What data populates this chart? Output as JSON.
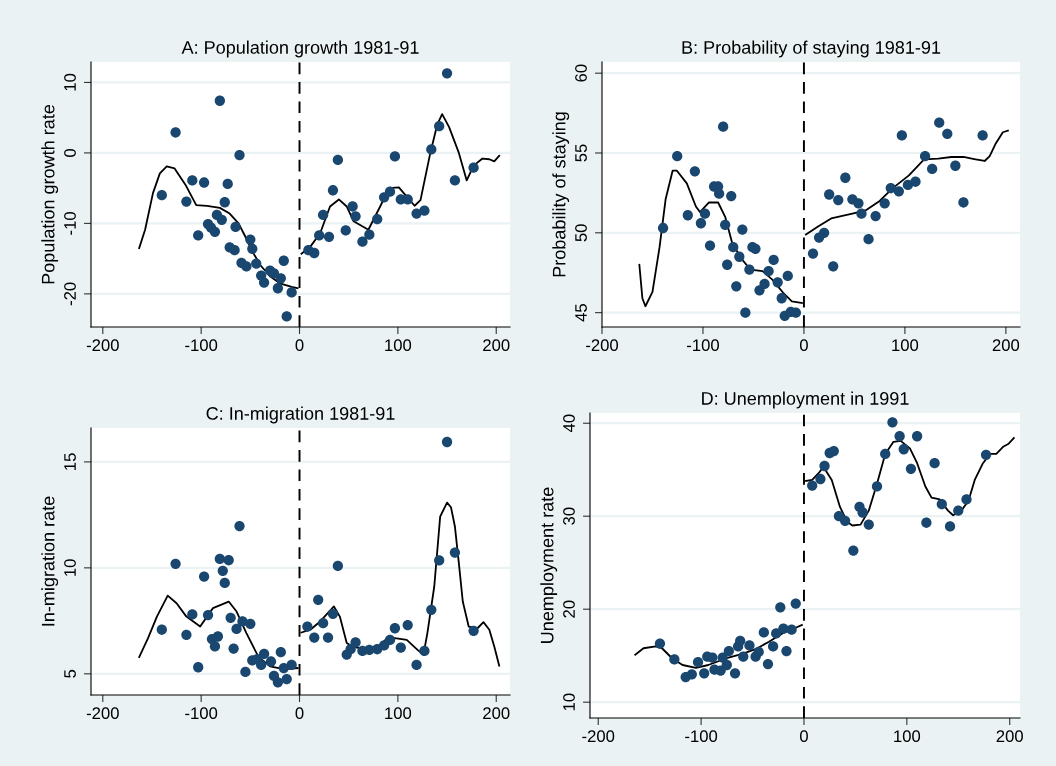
{
  "chart_data": [
    {
      "type": "scatter",
      "title": "A: Population growth 1981-91",
      "ylabel": "Population growth rate",
      "xlim": [
        -212,
        214
      ],
      "ylim": [
        -24.7,
        12.9
      ],
      "xticks": [
        -200,
        -100,
        0,
        100,
        200
      ],
      "yticks": [
        -20,
        -10,
        0,
        10
      ],
      "grid": "y",
      "marker": "circle",
      "ref_lines": [
        {
          "axis": "x",
          "value": 0,
          "color": "#000000",
          "line_style": "dashed"
        }
      ],
      "series": [
        {
          "color": "#1a476f",
          "x": [
            -140,
            -126,
            -81,
            -61,
            -109,
            -97,
            -115,
            -73,
            -76,
            -84,
            -79,
            -93,
            -90,
            -86,
            -103,
            -65,
            -50,
            -48,
            -71,
            -66,
            -59,
            -54,
            -44,
            -39,
            -36,
            -30,
            -26,
            -19,
            -16,
            -22,
            -8,
            -13,
            9,
            15,
            20,
            30,
            24,
            34,
            39,
            47,
            54,
            57,
            64,
            71,
            79,
            86,
            92,
            97,
            103,
            110,
            119,
            127,
            134,
            142,
            150,
            158,
            177
          ],
          "values": [
            -6.0,
            2.9,
            7.4,
            -0.3,
            -3.9,
            -4.2,
            -6.9,
            -4.4,
            -7.0,
            -8.8,
            -9.5,
            -10.1,
            -10.6,
            -11.2,
            -11.7,
            -10.5,
            -12.3,
            -13.6,
            -13.4,
            -13.8,
            -15.6,
            -16.1,
            -15.7,
            -17.4,
            -18.4,
            -16.7,
            -17.1,
            -17.8,
            -15.3,
            -19.2,
            -19.8,
            -23.2,
            -13.8,
            -14.2,
            -11.7,
            -11.9,
            -8.8,
            -5.3,
            -1.0,
            -11.0,
            -7.6,
            -9.0,
            -12.6,
            -11.6,
            -9.4,
            -6.3,
            -5.5,
            -0.5,
            -6.6,
            -6.6,
            -8.6,
            -8.2,
            0.5,
            3.8,
            11.3,
            -3.9,
            -2.1
          ]
        },
        {
          "type": "line",
          "marker": "none",
          "color": "#000000",
          "x": [
            -163,
            -157,
            -149,
            -142,
            -135,
            -127,
            -116,
            -105,
            -94,
            -81,
            -71,
            -62,
            -55,
            -47,
            -40,
            -30,
            -20,
            -8,
            -2
          ],
          "values": [
            -13.5,
            -10.9,
            -5.7,
            -2.9,
            -1.9,
            -2.2,
            -4.5,
            -7.4,
            -7.5,
            -7.8,
            -8.6,
            -10.0,
            -11.9,
            -14.2,
            -15.9,
            -17.5,
            -18.5,
            -19.0,
            -19.2
          ]
        },
        {
          "type": "line",
          "marker": "none",
          "color": "#000000",
          "x": [
            2,
            11,
            21,
            31,
            40,
            48,
            55,
            70,
            82,
            91,
            101,
            109,
            117,
            123,
            133,
            140,
            145,
            152,
            162,
            170,
            177,
            186,
            193,
            198,
            203
          ],
          "values": [
            -14.3,
            -13.3,
            -11.4,
            -7.6,
            -6.6,
            -7.6,
            -9.7,
            -10.9,
            -7.6,
            -5.0,
            -4.9,
            -6.2,
            -7.5,
            -6.7,
            0,
            4.0,
            5.5,
            3.7,
            0,
            -3.9,
            -1.8,
            -0.8,
            -0.9,
            -1.2,
            -0.4
          ]
        }
      ]
    },
    {
      "type": "scatter",
      "title": "B: Probability of staying 1981-91",
      "ylabel": "Probability of staying",
      "xlim": [
        -200,
        214
      ],
      "ylim": [
        44.1,
        60.7
      ],
      "xticks": [
        -200,
        -100,
        0,
        100,
        200
      ],
      "yticks": [
        45,
        50,
        55,
        60
      ],
      "grid": "y",
      "marker": "circle",
      "ref_lines": [
        {
          "axis": "x",
          "value": 0,
          "color": "#000000",
          "line_style": "dashed"
        }
      ],
      "series": [
        {
          "color": "#1a476f",
          "x": [
            -139.5,
            -125.5,
            -108,
            -115,
            -102,
            -98,
            -93,
            -89,
            -85,
            -84,
            -80,
            -78,
            -72,
            -70,
            -76,
            -67,
            -64,
            -61,
            -58,
            -54,
            -51,
            -48,
            -44,
            -39,
            -35,
            -30,
            -26,
            -22,
            -16,
            -19,
            -13,
            -8,
            9,
            15,
            20,
            25,
            29,
            34,
            41,
            48,
            54,
            57,
            64,
            71,
            80,
            86,
            94,
            97,
            103,
            110.5,
            120,
            127,
            134,
            142,
            150,
            158,
            177
          ],
          "values": [
            50.3,
            54.8,
            53.85,
            51.1,
            50.6,
            51.2,
            49.2,
            52.9,
            52.9,
            52.45,
            56.65,
            50.5,
            52.3,
            49.1,
            48.0,
            46.65,
            48.5,
            50.2,
            45.0,
            47.7,
            49.1,
            49.0,
            46.4,
            46.8,
            47.6,
            48.3,
            46.9,
            45.9,
            47.3,
            44.8,
            45.05,
            45.0,
            48.7,
            49.7,
            50.0,
            52.4,
            47.9,
            52.05,
            53.45,
            52.1,
            51.85,
            51.2,
            49.6,
            51.05,
            51.85,
            52.8,
            52.6,
            56.1,
            53.0,
            53.2,
            54.8,
            54.0,
            56.9,
            56.2,
            54.2,
            51.9,
            56.1
          ]
        },
        {
          "type": "line",
          "marker": "none",
          "color": "#000000",
          "x": [
            -163,
            -160,
            -157,
            -150,
            -143,
            -137,
            -130,
            -126,
            -116,
            -107,
            -103,
            -94,
            -85,
            -78,
            -71,
            -61,
            -53,
            -41,
            -31,
            -20,
            -12,
            -2
          ],
          "values": [
            48.0,
            45.9,
            45.4,
            46.3,
            49.1,
            52.1,
            53.9,
            53.9,
            53.1,
            51.65,
            51.3,
            51.9,
            51.9,
            51.0,
            49.35,
            48.3,
            47.7,
            47.6,
            47.05,
            46.2,
            45.7,
            45.6
          ]
        },
        {
          "type": "line",
          "marker": "none",
          "color": "#000000",
          "x": [
            2,
            14,
            27,
            48,
            61,
            75,
            88,
            104,
            119,
            133,
            146,
            158,
            170,
            179,
            184,
            190,
            197,
            202
          ],
          "values": [
            49.9,
            50.4,
            50.9,
            51.2,
            51.4,
            52.0,
            52.8,
            53.6,
            54.6,
            54.65,
            54.75,
            54.75,
            54.6,
            54.5,
            54.8,
            55.6,
            56.3,
            56.4
          ]
        }
      ]
    },
    {
      "type": "scatter",
      "title": "C: In-migration 1981-91",
      "ylabel": "In-migration rate",
      "xlim": [
        -212,
        214
      ],
      "ylim": [
        4.0,
        16.6
      ],
      "xticks": [
        -200,
        -100,
        0,
        100,
        200
      ],
      "yticks": [
        5,
        10,
        15
      ],
      "grid": "y",
      "marker": "circle",
      "ref_lines": [
        {
          "axis": "x",
          "value": 0,
          "color": "#000000",
          "line_style": "dashed"
        }
      ],
      "series": [
        {
          "color": "#1a476f",
          "x": [
            -140,
            -126,
            -115,
            -109,
            -103,
            -97,
            -93,
            -89,
            -86,
            -83,
            -81,
            -72,
            -78,
            -76,
            -70,
            -64,
            -61,
            -67,
            -58,
            -50,
            -55,
            -48,
            -43,
            -36,
            -39,
            -29,
            -26,
            -22,
            -19,
            -13,
            -8,
            -16,
            8,
            15,
            19,
            24,
            29,
            34,
            39,
            48,
            57,
            52,
            64,
            71,
            79,
            86,
            92,
            97,
            103,
            110,
            119,
            127,
            134,
            142,
            150,
            158,
            177
          ],
          "values": [
            7.08,
            10.19,
            6.84,
            7.8,
            5.31,
            9.59,
            7.77,
            6.64,
            6.29,
            6.76,
            10.42,
            10.36,
            9.86,
            9.29,
            7.64,
            7.12,
            11.97,
            6.19,
            7.47,
            7.36,
            5.09,
            5.63,
            5.69,
            5.94,
            5.42,
            5.58,
            4.9,
            4.6,
            6.02,
            4.75,
            5.42,
            5.27,
            7.23,
            6.71,
            8.49,
            7.39,
            6.71,
            7.83,
            10.09,
            5.91,
            6.48,
            6.16,
            6.08,
            6.13,
            6.16,
            6.34,
            6.6,
            7.15,
            6.24,
            7.3,
            5.42,
            6.08,
            8.02,
            10.35,
            15.94,
            10.72,
            7.03
          ]
        },
        {
          "type": "line",
          "marker": "none",
          "color": "#000000",
          "x": [
            -163,
            -154,
            -145,
            -134,
            -125,
            -115,
            -101,
            -88,
            -72,
            -64,
            -54,
            -42,
            -30,
            -16,
            -2
          ],
          "values": [
            5.79,
            6.68,
            7.7,
            8.69,
            8.33,
            7.7,
            7.23,
            8.1,
            8.41,
            7.94,
            6.92,
            5.82,
            5.35,
            5.22,
            5.27
          ]
        },
        {
          "type": "line",
          "marker": "none",
          "color": "#000000",
          "x": [
            2,
            11,
            21,
            35,
            41,
            48,
            55,
            69,
            79,
            88,
            97,
            109,
            120,
            126,
            130,
            137,
            143,
            150,
            154,
            158,
            162,
            166,
            172,
            181,
            187,
            193,
            198,
            203
          ],
          "values": [
            6.95,
            7.08,
            7.47,
            8.18,
            7.7,
            6.45,
            6.26,
            6.16,
            6.16,
            6.64,
            6.68,
            6.6,
            6.13,
            5.9,
            6.92,
            9.12,
            12.42,
            13.08,
            12.86,
            11.95,
            10.22,
            8.41,
            7.23,
            7.15,
            7.44,
            7.08,
            6.29,
            5.39
          ]
        }
      ]
    },
    {
      "type": "scatter",
      "title": "D: Unemployment in 1991",
      "ylabel": "Unemployment rate",
      "xlim": [
        -208,
        210
      ],
      "ylim": [
        8.3,
        41.1
      ],
      "xticks": [
        -200,
        -100,
        0,
        100,
        200
      ],
      "yticks": [
        10,
        20,
        30,
        40
      ],
      "grid": "y",
      "marker": "circle",
      "ref_lines": [
        {
          "axis": "x",
          "value": 0,
          "color": "#000000",
          "line_style": "dashed"
        }
      ],
      "series": [
        {
          "color": "#1a476f",
          "x": [
            -140,
            -126,
            -115,
            -109,
            -103,
            -97,
            -94,
            -89,
            -87,
            -81,
            -79,
            -75,
            -73,
            -67,
            -64,
            -62,
            -59,
            -53,
            -47,
            -44,
            -39,
            -35,
            -30,
            -27,
            -23,
            -20,
            -17,
            -12,
            -8,
            8,
            16,
            20,
            25,
            29,
            34,
            40,
            48,
            54,
            57,
            63,
            71,
            79,
            86,
            93,
            97,
            104,
            110,
            119,
            127,
            134,
            142,
            150,
            158,
            177
          ],
          "values": [
            16.3,
            14.6,
            12.7,
            13.0,
            14.3,
            13.1,
            14.9,
            14.8,
            13.5,
            13.4,
            14.8,
            14.0,
            15.5,
            13.1,
            16.0,
            16.6,
            14.9,
            16.1,
            14.9,
            15.4,
            17.5,
            14.1,
            16.0,
            17.4,
            20.2,
            17.9,
            15.5,
            17.8,
            20.6,
            33.3,
            34.0,
            35.4,
            36.8,
            37.0,
            30.0,
            29.5,
            26.3,
            31.0,
            30.4,
            29.1,
            33.2,
            36.7,
            40.1,
            38.6,
            37.2,
            35.1,
            38.6,
            29.3,
            35.7,
            31.3,
            28.9,
            30.6,
            31.8,
            36.6
          ]
        },
        {
          "type": "line",
          "marker": "none",
          "color": "#000000",
          "x": [
            -164,
            -156,
            -144,
            -138,
            -128,
            -118,
            -105,
            -93,
            -76,
            -60,
            -47,
            -34,
            -21,
            -8,
            -2
          ],
          "values": [
            15.1,
            15.8,
            16.0,
            15.8,
            14.7,
            14.0,
            13.7,
            14.0,
            14.7,
            15.2,
            15.7,
            16.5,
            17.4,
            18.0,
            18.3
          ]
        },
        {
          "type": "line",
          "marker": "none",
          "color": "#000000",
          "x": [
            2,
            8,
            14,
            19,
            27,
            35,
            42,
            47,
            55,
            63,
            71,
            79,
            87,
            94,
            103,
            110,
            118,
            124,
            132,
            140,
            145,
            153,
            160,
            166,
            174,
            181,
            187,
            194,
            199,
            204
          ],
          "values": [
            33.8,
            33.9,
            34.6,
            35.3,
            33.9,
            31.0,
            29.4,
            29.0,
            29.1,
            30.6,
            33.5,
            36.7,
            38.0,
            38.1,
            37.3,
            35.7,
            33.2,
            32.0,
            31.8,
            30.6,
            30.1,
            30.6,
            31.7,
            33.9,
            35.7,
            36.7,
            36.7,
            37.5,
            37.8,
            38.4
          ]
        }
      ]
    }
  ]
}
